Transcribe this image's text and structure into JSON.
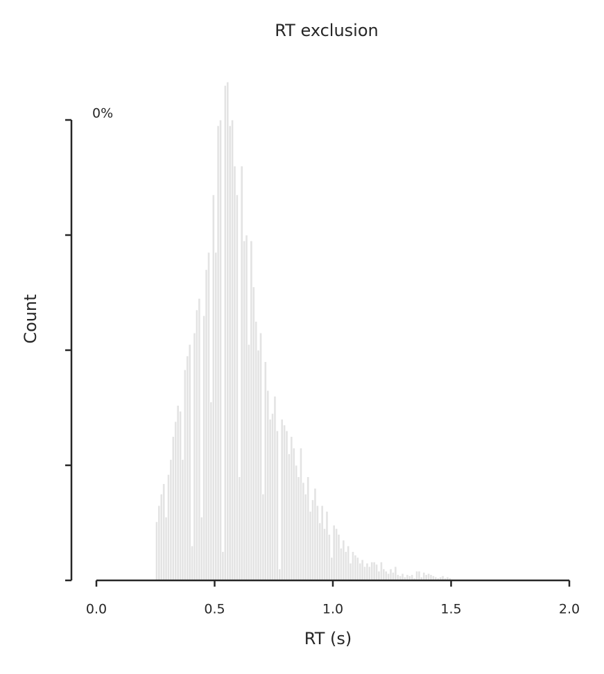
{
  "chart_data": {
    "type": "histogram",
    "title": "RT exclusion",
    "xlabel": "RT (s)",
    "ylabel": "Count",
    "annotation": "0%",
    "color": "#e3e3e3",
    "bins": [
      0.25,
      0.26,
      0.27,
      0.28,
      0.29,
      0.3,
      0.31,
      0.32,
      0.33,
      0.34,
      0.35,
      0.36,
      0.37,
      0.38,
      0.39,
      0.4,
      0.41,
      0.42,
      0.43,
      0.44,
      0.45,
      0.46,
      0.47,
      0.48,
      0.49,
      0.5,
      0.51,
      0.52,
      0.53,
      0.54,
      0.55,
      0.56,
      0.57,
      0.58,
      0.59,
      0.6,
      0.61,
      0.62,
      0.63,
      0.64,
      0.65,
      0.66,
      0.67,
      0.68,
      0.69,
      0.7,
      0.71,
      0.72,
      0.73,
      0.74,
      0.75,
      0.76,
      0.77,
      0.78,
      0.79,
      0.8,
      0.81,
      0.82,
      0.83,
      0.84,
      0.85,
      0.86,
      0.87,
      0.88,
      0.89,
      0.9,
      0.91,
      0.92,
      0.93,
      0.94,
      0.95,
      0.96,
      0.97,
      0.98,
      0.99,
      1.0,
      1.01,
      1.02,
      1.03,
      1.04,
      1.05,
      1.06,
      1.07,
      1.08,
      1.09,
      1.1,
      1.11,
      1.12,
      1.13,
      1.14,
      1.15,
      1.16,
      1.17,
      1.18,
      1.19,
      1.2,
      1.21,
      1.22,
      1.23,
      1.24,
      1.25,
      1.26,
      1.27,
      1.28,
      1.29,
      1.3,
      1.31,
      1.32,
      1.33,
      1.34,
      1.35,
      1.36,
      1.37,
      1.38,
      1.39,
      1.4,
      1.41,
      1.42,
      1.43,
      1.44,
      1.45,
      1.46,
      1.47,
      1.48,
      1.49,
      1.5
    ],
    "values": [
      0.51,
      0.65,
      0.75,
      0.84,
      0.55,
      0.92,
      1.05,
      1.25,
      1.38,
      1.52,
      1.47,
      1.05,
      1.83,
      1.95,
      2.05,
      0.3,
      2.15,
      2.35,
      2.45,
      0.55,
      2.3,
      2.7,
      2.85,
      1.55,
      3.35,
      2.85,
      3.95,
      4.0,
      0.25,
      4.3,
      4.33,
      3.95,
      4.0,
      3.6,
      3.35,
      0.9,
      3.6,
      2.95,
      3.0,
      2.05,
      2.95,
      2.55,
      2.25,
      2.0,
      2.15,
      0.75,
      1.9,
      1.65,
      1.4,
      1.45,
      1.6,
      1.3,
      0.1,
      1.4,
      1.35,
      1.3,
      1.1,
      1.25,
      1.15,
      1.0,
      0.9,
      1.15,
      0.85,
      0.75,
      0.9,
      0.6,
      0.7,
      0.8,
      0.65,
      0.5,
      0.65,
      0.45,
      0.6,
      0.4,
      0.2,
      0.48,
      0.45,
      0.4,
      0.28,
      0.35,
      0.25,
      0.3,
      0.15,
      0.25,
      0.22,
      0.2,
      0.15,
      0.18,
      0.12,
      0.15,
      0.12,
      0.16,
      0.16,
      0.14,
      0.08,
      0.16,
      0.1,
      0.08,
      0.06,
      0.1,
      0.07,
      0.12,
      0.05,
      0.04,
      0.06,
      0.03,
      0.05,
      0.04,
      0.05,
      0.02,
      0.08,
      0.08,
      0.03,
      0.07,
      0.05,
      0.06,
      0.05,
      0.04,
      0.03,
      0.02,
      0.03,
      0.04,
      0.02,
      0.03,
      0.02
    ],
    "xlim": [
      0,
      2
    ],
    "xticks": [
      {
        "value": 0,
        "label": "0.0"
      },
      0.5,
      {
        "value": 1,
        "label": "1.0"
      },
      1.5,
      {
        "value": 2,
        "label": "2.0"
      }
    ],
    "ylim": [
      0,
      4
    ],
    "yticks": [
      0,
      1,
      2,
      3,
      4
    ]
  }
}
